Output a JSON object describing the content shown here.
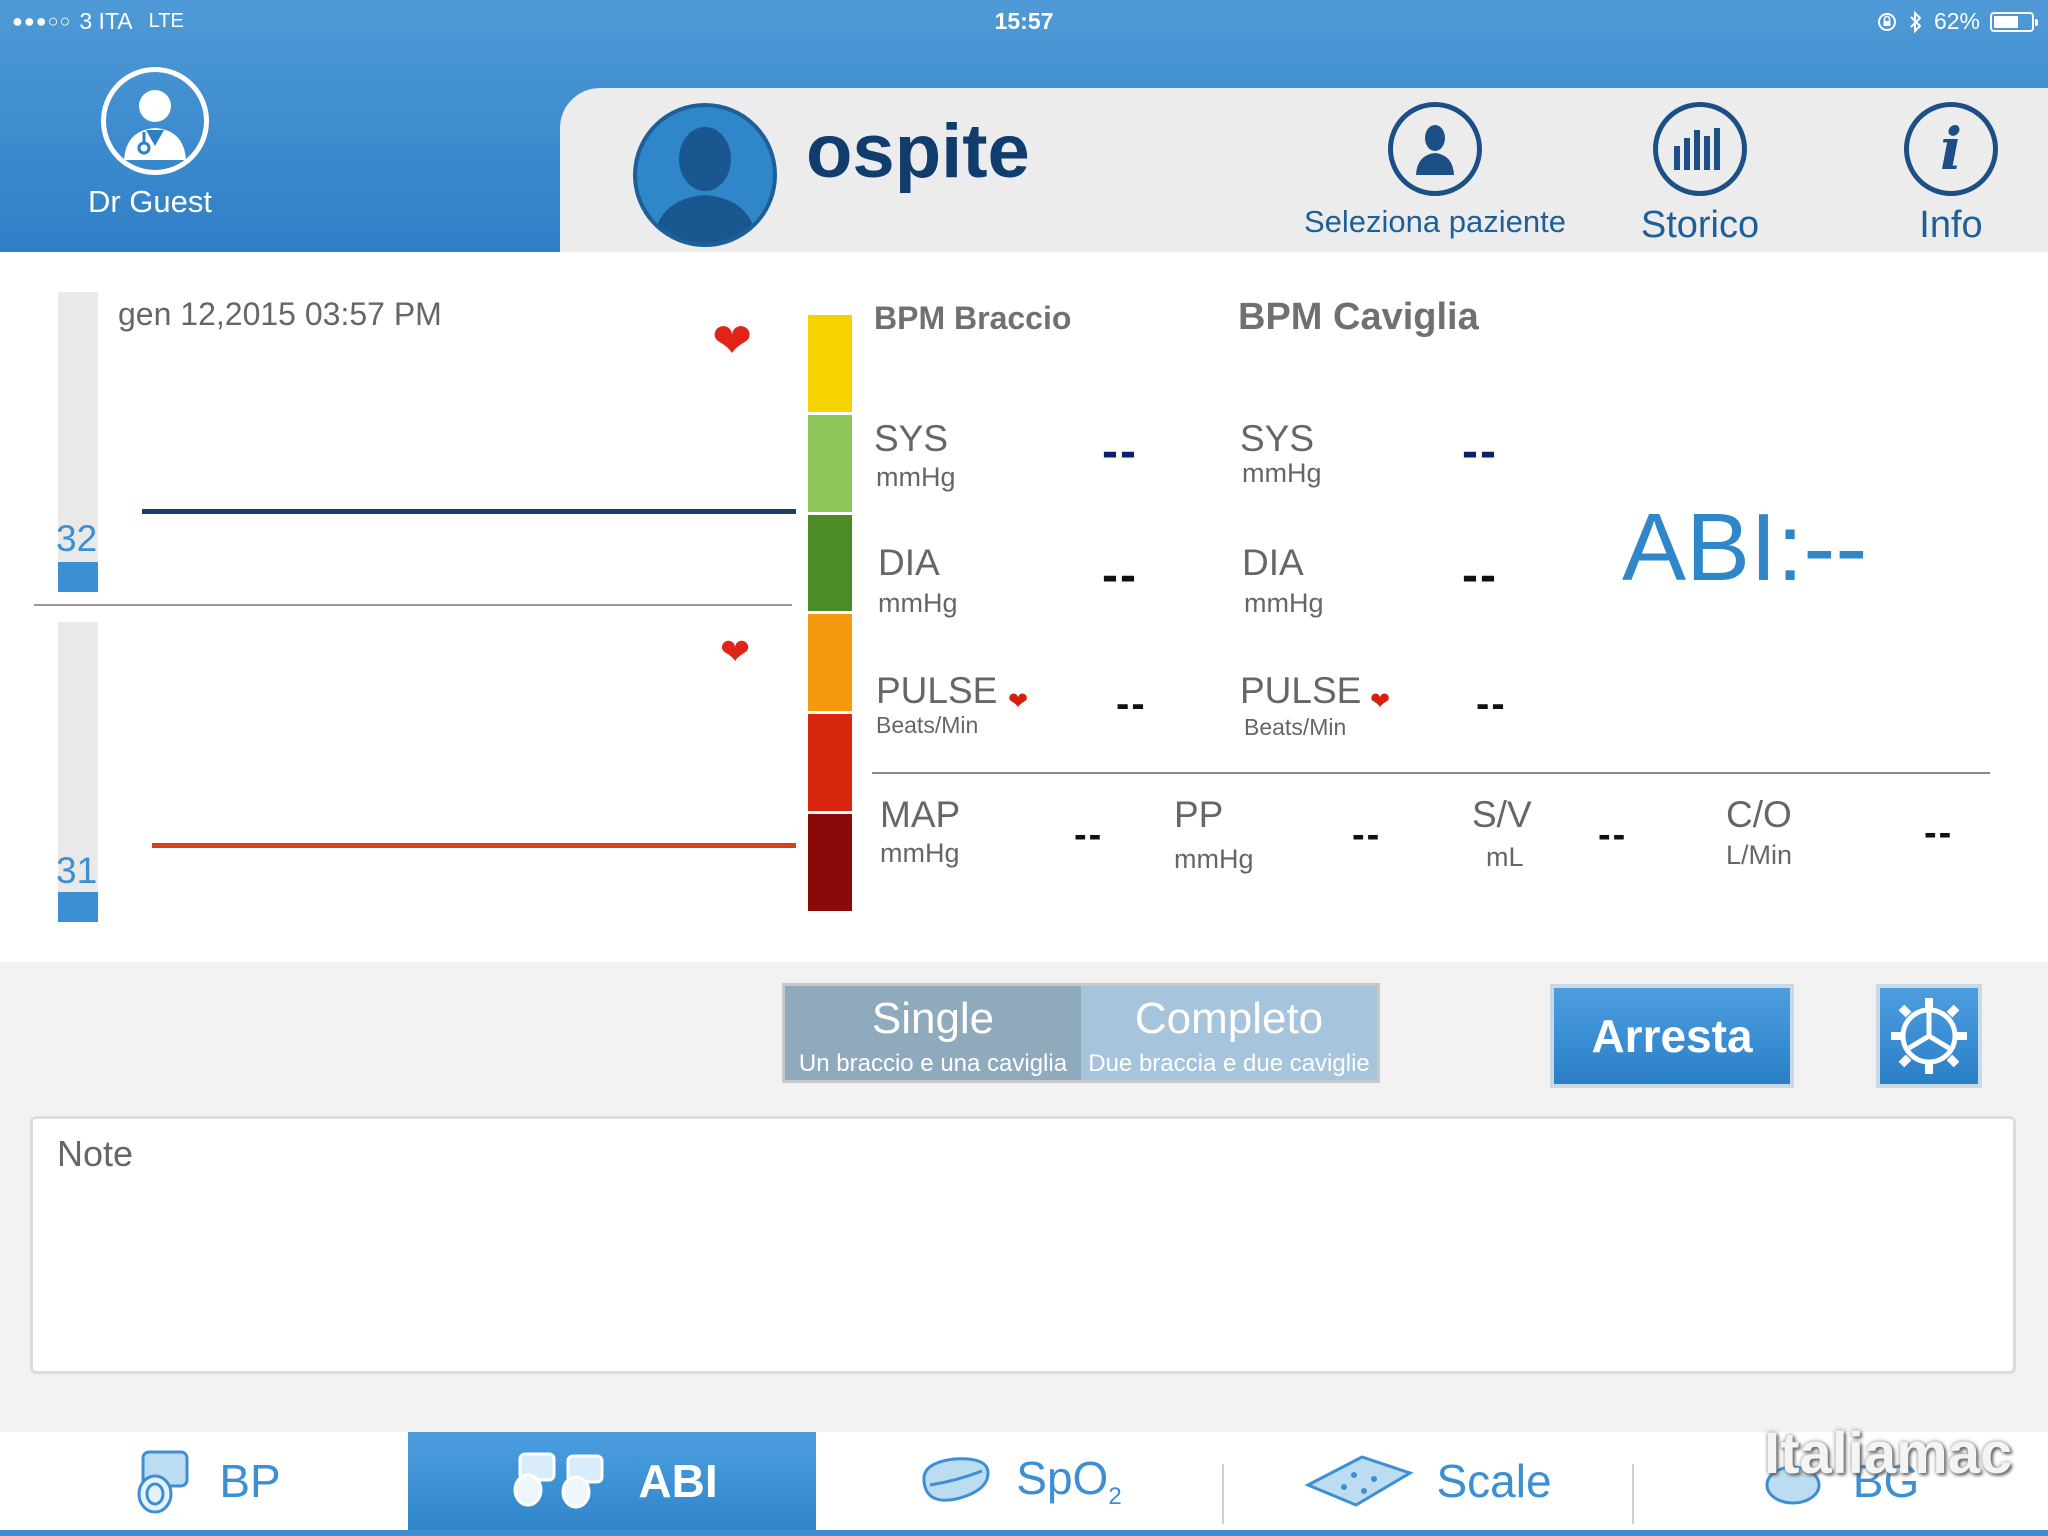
{
  "status_bar": {
    "signal_dots": "●●●○○",
    "carrier": "3 ITA",
    "network": "LTE",
    "time": "15:57",
    "battery_percent": "62%",
    "battery_level": 0.62
  },
  "doctor": {
    "name": "Dr Guest"
  },
  "patient": {
    "name": "ospite"
  },
  "header_buttons": {
    "select_patient": "Seleziona paziente",
    "history": "Storico",
    "info": "Info"
  },
  "chart": {
    "date": "gen 12,2015 03:57 PM",
    "upper_value": "32",
    "lower_value": "31"
  },
  "columns": {
    "arm_title": "BPM Braccio",
    "ankle_title": "BPM Caviglia"
  },
  "measurements": {
    "sys_label": "SYS",
    "dia_label": "DIA",
    "pulse_label": "PULSE",
    "mmhg_unit": "mmHg",
    "beats_unit": "Beats/Min",
    "arm": {
      "sys": "--",
      "dia": "--",
      "pulse": "--"
    },
    "ankle": {
      "sys": "--",
      "dia": "--",
      "pulse": "--"
    }
  },
  "abi": "ABI:--",
  "extras": {
    "map": {
      "label": "MAP",
      "unit": "mmHg",
      "value": "--"
    },
    "pp": {
      "label": "PP",
      "unit": "mmHg",
      "value": "--"
    },
    "sv": {
      "label": "S/V",
      "unit": "mL",
      "value": "--"
    },
    "co": {
      "label": "C/O",
      "unit": "L/Min",
      "value": "--"
    }
  },
  "mode": {
    "single_title": "Single",
    "single_sub": "Un braccio e una caviglia",
    "full_title": "Completo",
    "full_sub": "Due braccia e due caviglie"
  },
  "stop_button": "Arresta",
  "notes_placeholder": "Note",
  "tabs": {
    "bp": "BP",
    "abi": "ABI",
    "spo2": "SpO",
    "spo2_sub": "2",
    "scale": "Scale",
    "bg": "BG"
  },
  "watermark": "Italiamac",
  "colors": {
    "accent": "#3d8fd3",
    "header_blue": "#2f7fc7",
    "title_navy": "#103d6e",
    "scale_yellow": "#f6d200",
    "scale_light_green": "#8cc65a",
    "scale_green": "#4c8c27",
    "scale_orange": "#f59a0c",
    "scale_red": "#d8250e",
    "scale_dark_red": "#8a0a0a"
  }
}
